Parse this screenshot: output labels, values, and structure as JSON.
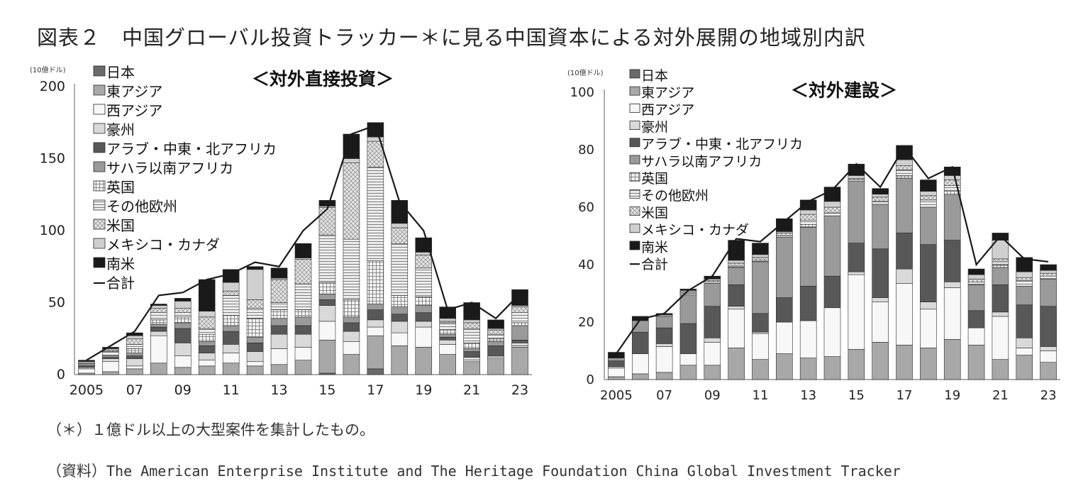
{
  "figure": {
    "title": "図表２　中国グローバル投資トラッカー＊に見る中国資本による対外展開の地域別内訳",
    "note": "（＊）１億ドル以上の大型案件を集計したもの。",
    "source_prefix": "（資料）",
    "source": "The American Enterprise Institute and The Heritage Foundation China Global Investment Tracker"
  },
  "colors": {
    "japan": "#6a6a6a",
    "east_asia": "#a8a8a8",
    "west_asia": "#f7f7f7",
    "australia": "#d9d9d9",
    "mena": "#585858",
    "ssa": "#9a9a9a",
    "uk": "#f3f3f3",
    "other_europe": "#ededed",
    "us": "#e4e4e4",
    "mexico_canada": "#cfcfcf",
    "south_america": "#1a1a1a",
    "total_line": "#1a1a1a"
  },
  "chart_data": [
    {
      "type": "bar",
      "stacked": true,
      "title": "＜対外直接投資＞",
      "unit": "(10億ドル)",
      "ylim": [
        0,
        200
      ],
      "yticks": [
        0,
        50,
        100,
        150,
        200
      ],
      "years": [
        2005,
        2006,
        2007,
        2008,
        2009,
        2010,
        2011,
        2012,
        2013,
        2014,
        2015,
        2016,
        2017,
        2018,
        2019,
        2020,
        2021,
        2022,
        2023
      ],
      "xtick_labels": [
        "2005",
        "07",
        "09",
        "11",
        "13",
        "15",
        "17",
        "19",
        "21",
        "23"
      ],
      "legend_entries": [
        "日本",
        "東アジア",
        "西アジア",
        "豪州",
        "アラブ・中東・北アフリカ",
        "サハラ以南アフリカ",
        "英国",
        "その他欧州",
        "米国",
        "メキシコ・カナダ",
        "南米",
        "合計"
      ],
      "series": [
        {
          "key": "japan",
          "name": "日本",
          "pattern": "solid",
          "values": [
            0,
            0,
            0,
            0,
            0,
            0,
            0,
            0,
            0,
            0,
            1,
            0,
            4,
            0,
            0,
            0,
            0,
            0,
            0
          ]
        },
        {
          "key": "east_asia",
          "name": "東アジア",
          "pattern": "solid",
          "values": [
            1,
            2,
            4,
            8,
            5,
            6,
            8,
            6,
            7,
            10,
            23,
            14,
            23,
            20,
            19,
            14,
            9,
            11,
            19
          ]
        },
        {
          "key": "west_asia",
          "name": "西アジア",
          "pattern": "solid",
          "values": [
            3,
            7,
            2,
            19,
            8,
            4,
            7,
            3,
            11,
            9,
            13,
            9,
            6,
            9,
            14,
            7,
            1,
            1,
            1
          ]
        },
        {
          "key": "australia",
          "name": "豪州",
          "pattern": "solid",
          "values": [
            1,
            2,
            5,
            3,
            9,
            5,
            6,
            7,
            10,
            9,
            11,
            7,
            5,
            8,
            4,
            3,
            2,
            1,
            2
          ]
        },
        {
          "key": "mena",
          "name": "アラブ・中東・北アフリカ",
          "pattern": "solid",
          "values": [
            1,
            1,
            2,
            3,
            10,
            5,
            9,
            6,
            6,
            6,
            4,
            6,
            7,
            5,
            6,
            2,
            4,
            7,
            2
          ]
        },
        {
          "key": "ssa",
          "name": "サハラ以南アフリカ",
          "pattern": "solid",
          "values": [
            1,
            1,
            2,
            2,
            4,
            3,
            4,
            4,
            5,
            6,
            4,
            4,
            4,
            5,
            5,
            2,
            2,
            3,
            10
          ]
        },
        {
          "key": "uk",
          "name": "英国",
          "pattern": "grid",
          "values": [
            0,
            0,
            3,
            3,
            4,
            5,
            7,
            13,
            6,
            5,
            8,
            12,
            30,
            8,
            6,
            3,
            4,
            2,
            2
          ]
        },
        {
          "key": "other_europe",
          "name": "その他欧州",
          "pattern": "hlines",
          "values": [
            1,
            3,
            3,
            5,
            3,
            4,
            14,
            7,
            5,
            18,
            33,
            42,
            65,
            36,
            20,
            5,
            10,
            3,
            7
          ]
        },
        {
          "key": "us",
          "name": "米国",
          "pattern": "cross",
          "values": [
            0,
            1,
            4,
            3,
            3,
            8,
            3,
            6,
            16,
            17,
            19,
            53,
            18,
            11,
            9,
            1,
            4,
            3,
            4
          ]
        },
        {
          "key": "mexico_canada",
          "name": "メキシコ・カナダ",
          "pattern": "solid",
          "values": [
            1,
            1,
            2,
            2,
            5,
            4,
            6,
            21,
            1,
            1,
            1,
            3,
            3,
            3,
            2,
            2,
            2,
            1,
            1
          ]
        },
        {
          "key": "south_america",
          "name": "南米",
          "pattern": "solid",
          "values": [
            1,
            1,
            2,
            1,
            2,
            22,
            9,
            2,
            7,
            10,
            4,
            17,
            10,
            16,
            10,
            8,
            12,
            6,
            11
          ]
        }
      ],
      "total": {
        "name": "合計",
        "values": [
          10,
          20,
          30,
          55,
          57,
          66,
          70,
          78,
          75,
          100,
          115,
          167,
          173,
          120,
          100,
          45,
          50,
          39,
          56
        ]
      }
    },
    {
      "type": "bar",
      "stacked": true,
      "title": "＜対外建設＞",
      "unit": "(10億ドル)",
      "ylim": [
        0,
        100
      ],
      "yticks": [
        0,
        20,
        40,
        60,
        80,
        100
      ],
      "years": [
        2005,
        2006,
        2007,
        2008,
        2009,
        2010,
        2011,
        2012,
        2013,
        2014,
        2015,
        2016,
        2017,
        2018,
        2019,
        2020,
        2021,
        2022,
        2023
      ],
      "xtick_labels": [
        "2005",
        "07",
        "09",
        "11",
        "13",
        "15",
        "17",
        "19",
        "21",
        "23"
      ],
      "legend_entries": [
        "日本",
        "東アジア",
        "西アジア",
        "豪州",
        "アラブ・中東・北アフリカ",
        "サハラ以南アフリカ",
        "英国",
        "その他欧州",
        "米国",
        "メキシコ・カナダ",
        "南米",
        "合計"
      ],
      "series": [
        {
          "key": "japan",
          "name": "日本",
          "pattern": "solid",
          "values": [
            0,
            0,
            0,
            0,
            0,
            0,
            0,
            0,
            0,
            0,
            0,
            0,
            0,
            0,
            0,
            0,
            0,
            0,
            0
          ]
        },
        {
          "key": "east_asia",
          "name": "東アジア",
          "pattern": "solid",
          "values": [
            1,
            2,
            2.5,
            5,
            5,
            11,
            7,
            9,
            7.5,
            8,
            10.5,
            13,
            12,
            11,
            14,
            12,
            7,
            8.5,
            6
          ]
        },
        {
          "key": "west_asia",
          "name": "西アジア",
          "pattern": "solid",
          "values": [
            3,
            7,
            9,
            4,
            8,
            13.5,
            9,
            11,
            13,
            17,
            26,
            14,
            21.5,
            13.5,
            18,
            6,
            15,
            2.5,
            4
          ]
        },
        {
          "key": "australia",
          "name": "豪州",
          "pattern": "solid",
          "values": [
            0.5,
            0,
            1,
            0,
            1.5,
            1,
            0.5,
            0,
            0,
            0,
            1,
            1.5,
            5,
            2.5,
            2,
            0,
            1.5,
            3.5,
            1.5
          ]
        },
        {
          "key": "mena",
          "name": "アラブ・中東・北アフリカ",
          "pattern": "solid",
          "values": [
            2,
            7.5,
            5.5,
            10.5,
            11,
            7.5,
            6.5,
            8.5,
            12,
            11,
            10,
            17,
            12.5,
            20,
            14.5,
            6,
            9.5,
            11.5,
            14
          ]
        },
        {
          "key": "ssa",
          "name": "サハラ以南アフリカ",
          "pattern": "solid",
          "values": [
            1,
            4,
            4,
            10,
            8,
            6,
            18,
            21,
            20.5,
            21,
            21.5,
            15.5,
            19,
            13,
            16,
            9,
            6,
            6.5,
            9.5
          ]
        },
        {
          "key": "uk",
          "name": "英国",
          "pattern": "grid",
          "values": [
            0,
            0,
            0,
            0,
            0,
            0,
            0,
            0,
            1,
            0,
            0,
            0,
            1,
            0,
            1,
            0,
            1,
            0,
            0
          ]
        },
        {
          "key": "other_europe",
          "name": "その他欧州",
          "pattern": "hlines",
          "values": [
            0,
            0,
            0,
            0.5,
            0.5,
            0.5,
            0.5,
            0.5,
            1.5,
            1,
            0.5,
            1,
            2,
            2.5,
            2,
            1,
            1,
            2,
            1
          ]
        },
        {
          "key": "us",
          "name": "米国",
          "pattern": "cross",
          "values": [
            0,
            0,
            0,
            0.5,
            0.5,
            1,
            1,
            1,
            2,
            2,
            0.5,
            1.5,
            1.5,
            1.5,
            2,
            1,
            1,
            1,
            1
          ]
        },
        {
          "key": "mexico_canada",
          "name": "メキシコ・カナダ",
          "pattern": "solid",
          "values": [
            0,
            0,
            0.5,
            0.5,
            0.5,
            1,
            1,
            0.5,
            1.5,
            2,
            1,
            1,
            2,
            1.5,
            1.5,
            1.5,
            6.5,
            2,
            1
          ]
        },
        {
          "key": "south_america",
          "name": "南米",
          "pattern": "solid",
          "values": [
            2,
            1.5,
            0.5,
            0.5,
            1,
            7,
            4,
            4.5,
            3.5,
            5,
            4,
            2,
            5,
            4,
            3,
            2,
            2.5,
            5,
            2
          ]
        }
      ],
      "total": {
        "name": "合計",
        "values": [
          9,
          21,
          23,
          31,
          36,
          49,
          48,
          55,
          62,
          66,
          75,
          67,
          81,
          70,
          74,
          40,
          50,
          42,
          41
        ]
      }
    }
  ]
}
